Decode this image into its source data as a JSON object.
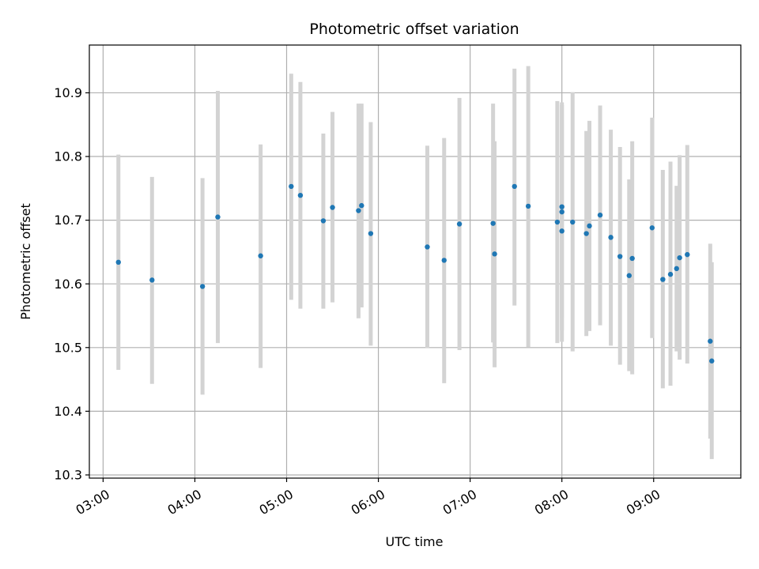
{
  "chart_data": {
    "type": "scatter",
    "title": "Photometric offset variation",
    "xlabel": "UTC time",
    "ylabel": "Photometric offset",
    "x_ticks": [
      "03:00",
      "04:00",
      "05:00",
      "06:00",
      "07:00",
      "08:00",
      "09:00"
    ],
    "y_ticks": [
      "10.3",
      "10.4",
      "10.5",
      "10.6",
      "10.7",
      "10.8",
      "10.9"
    ],
    "xlim": [
      "02:51",
      "09:57"
    ],
    "ylim": [
      10.295,
      10.975
    ],
    "grid": true,
    "colors": {
      "point": "#1f77b4",
      "errorbar": "#d3d3d3",
      "grid": "#b0b0b0"
    },
    "points": [
      {
        "x": "03:10",
        "y": 10.634,
        "ylow": 10.465,
        "yhigh": 10.803
      },
      {
        "x": "03:32",
        "y": 10.606,
        "ylow": 10.443,
        "yhigh": 10.768
      },
      {
        "x": "04:05",
        "y": 10.596,
        "ylow": 10.426,
        "yhigh": 10.766
      },
      {
        "x": "04:15",
        "y": 10.705,
        "ylow": 10.507,
        "yhigh": 10.903
      },
      {
        "x": "04:43",
        "y": 10.644,
        "ylow": 10.468,
        "yhigh": 10.819
      },
      {
        "x": "05:03",
        "y": 10.753,
        "ylow": 10.575,
        "yhigh": 10.93
      },
      {
        "x": "05:09",
        "y": 10.739,
        "ylow": 10.561,
        "yhigh": 10.917
      },
      {
        "x": "05:24",
        "y": 10.699,
        "ylow": 10.561,
        "yhigh": 10.836
      },
      {
        "x": "05:30",
        "y": 10.72,
        "ylow": 10.571,
        "yhigh": 10.87
      },
      {
        "x": "05:47",
        "y": 10.715,
        "ylow": 10.546,
        "yhigh": 10.883
      },
      {
        "x": "05:49",
        "y": 10.723,
        "ylow": 10.563,
        "yhigh": 10.883
      },
      {
        "x": "05:55",
        "y": 10.679,
        "ylow": 10.503,
        "yhigh": 10.854
      },
      {
        "x": "06:32",
        "y": 10.658,
        "ylow": 10.499,
        "yhigh": 10.817
      },
      {
        "x": "06:43",
        "y": 10.637,
        "ylow": 10.444,
        "yhigh": 10.829
      },
      {
        "x": "06:53",
        "y": 10.694,
        "ylow": 10.496,
        "yhigh": 10.892
      },
      {
        "x": "07:15",
        "y": 10.695,
        "ylow": 10.508,
        "yhigh": 10.883
      },
      {
        "x": "07:16",
        "y": 10.647,
        "ylow": 10.469,
        "yhigh": 10.824
      },
      {
        "x": "07:29",
        "y": 10.753,
        "ylow": 10.566,
        "yhigh": 10.938
      },
      {
        "x": "07:38",
        "y": 10.722,
        "ylow": 10.501,
        "yhigh": 10.942
      },
      {
        "x": "07:57",
        "y": 10.697,
        "ylow": 10.507,
        "yhigh": 10.887
      },
      {
        "x": "08:00",
        "y": 10.683,
        "ylow": 10.509,
        "yhigh": 10.857
      },
      {
        "x": "08:00",
        "y": 10.713,
        "ylow": 10.527,
        "yhigh": 10.885
      },
      {
        "x": "08:00",
        "y": 10.721,
        "ylow": 10.547,
        "yhigh": 10.881
      },
      {
        "x": "08:07",
        "y": 10.697,
        "ylow": 10.494,
        "yhigh": 10.901
      },
      {
        "x": "08:16",
        "y": 10.679,
        "ylow": 10.518,
        "yhigh": 10.84
      },
      {
        "x": "08:18",
        "y": 10.691,
        "ylow": 10.526,
        "yhigh": 10.856
      },
      {
        "x": "08:25",
        "y": 10.708,
        "ylow": 10.535,
        "yhigh": 10.88
      },
      {
        "x": "08:32",
        "y": 10.673,
        "ylow": 10.503,
        "yhigh": 10.842
      },
      {
        "x": "08:38",
        "y": 10.643,
        "ylow": 10.473,
        "yhigh": 10.815
      },
      {
        "x": "08:44",
        "y": 10.613,
        "ylow": 10.463,
        "yhigh": 10.764
      },
      {
        "x": "08:46",
        "y": 10.64,
        "ylow": 10.458,
        "yhigh": 10.824
      },
      {
        "x": "08:59",
        "y": 10.688,
        "ylow": 10.515,
        "yhigh": 10.861
      },
      {
        "x": "09:06",
        "y": 10.607,
        "ylow": 10.436,
        "yhigh": 10.779
      },
      {
        "x": "09:11",
        "y": 10.615,
        "ylow": 10.44,
        "yhigh": 10.792
      },
      {
        "x": "09:15",
        "y": 10.624,
        "ylow": 10.494,
        "yhigh": 10.754
      },
      {
        "x": "09:17",
        "y": 10.641,
        "ylow": 10.481,
        "yhigh": 10.802
      },
      {
        "x": "09:22",
        "y": 10.646,
        "ylow": 10.475,
        "yhigh": 10.818
      },
      {
        "x": "09:37",
        "y": 10.51,
        "ylow": 10.357,
        "yhigh": 10.663
      },
      {
        "x": "09:38",
        "y": 10.479,
        "ylow": 10.325,
        "yhigh": 10.634
      }
    ]
  }
}
